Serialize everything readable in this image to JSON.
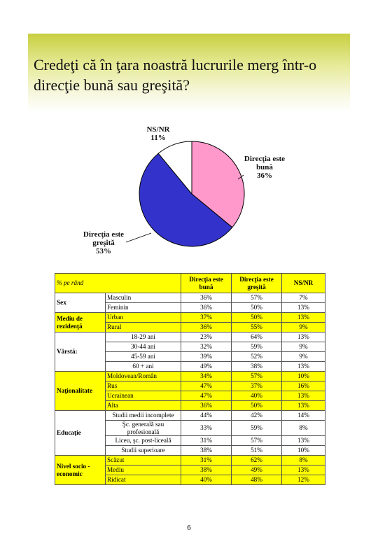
{
  "title": "Credeţi că în ţara noastră lucrurile merg într-o direcţie bună sau greşită?",
  "chart_data": {
    "type": "pie",
    "slices": [
      {
        "label_lines": [
          "Direcţia este",
          "bună",
          "36%"
        ],
        "value": 36,
        "color": "#ff99cc"
      },
      {
        "label_lines": [
          "Direcţia este",
          "greşită",
          "53%"
        ],
        "value": 53,
        "color": "#3333cc"
      },
      {
        "label_lines": [
          "NS/NR",
          "11%"
        ],
        "value": 11,
        "color": "#ffffff"
      }
    ]
  },
  "table": {
    "corner": "% pe rând",
    "headers": [
      [
        "Direcţia este",
        "bună"
      ],
      [
        "Direcţia este",
        "greşită"
      ],
      [
        "NS/NR"
      ]
    ],
    "groups": [
      {
        "label": "Sex",
        "color": "w",
        "rows": [
          {
            "label": "Masculin",
            "values": [
              "36%",
              "57%",
              "7%"
            ]
          },
          {
            "label": "Feminin",
            "values": [
              "36%",
              "50%",
              "13%"
            ]
          }
        ]
      },
      {
        "label": "Mediu de rezidenţă",
        "color": "y",
        "rows": [
          {
            "label": "Urban",
            "values": [
              "37%",
              "50%",
              "13%"
            ]
          },
          {
            "label": "Rural",
            "values": [
              "36%",
              "55%",
              "9%"
            ]
          }
        ]
      },
      {
        "label": "Vârstă:",
        "color": "w",
        "rows": [
          {
            "label": "18-29 ani",
            "values": [
              "23%",
              "64%",
              "13%"
            ]
          },
          {
            "label": "30-44 ani",
            "values": [
              "32%",
              "59%",
              "9%"
            ]
          },
          {
            "label": "45-59 ani",
            "values": [
              "39%",
              "52%",
              "9%"
            ]
          },
          {
            "label": "60 + ani",
            "values": [
              "49%",
              "38%",
              "13%"
            ]
          }
        ]
      },
      {
        "label": "Naţionalitate",
        "color": "y",
        "rows": [
          {
            "label": "Moldovean/Român",
            "values": [
              "34%",
              "57%",
              "10%"
            ]
          },
          {
            "label": "Rus",
            "values": [
              "47%",
              "37%",
              "16%"
            ]
          },
          {
            "label": "Ucrainean",
            "values": [
              "47%",
              "40%",
              "13%"
            ]
          },
          {
            "label": "Alta",
            "values": [
              "36%",
              "50%",
              "13%"
            ]
          }
        ]
      },
      {
        "label": "Educaţie",
        "color": "w",
        "rows": [
          {
            "label": "Studii medii incomplete",
            "values": [
              "44%",
              "42%",
              "14%"
            ]
          },
          {
            "label": "Şc. generală sau profesională",
            "values": [
              "33%",
              "59%",
              "8%"
            ],
            "tall": true
          },
          {
            "label": "Liceu, şc. post-liceală",
            "values": [
              "31%",
              "57%",
              "13%"
            ]
          },
          {
            "label": "Studii superioare",
            "values": [
              "38%",
              "51%",
              "10%"
            ]
          }
        ]
      },
      {
        "label": "Nivel socio - economic",
        "color": "y",
        "rows": [
          {
            "label": "Scăzut",
            "values": [
              "31%",
              "62%",
              "8%"
            ]
          },
          {
            "label": "Mediu",
            "values": [
              "38%",
              "49%",
              "13%"
            ]
          },
          {
            "label": "Ridicat",
            "values": [
              "40%",
              "48%",
              "12%"
            ]
          }
        ]
      }
    ]
  },
  "page_number": "6"
}
